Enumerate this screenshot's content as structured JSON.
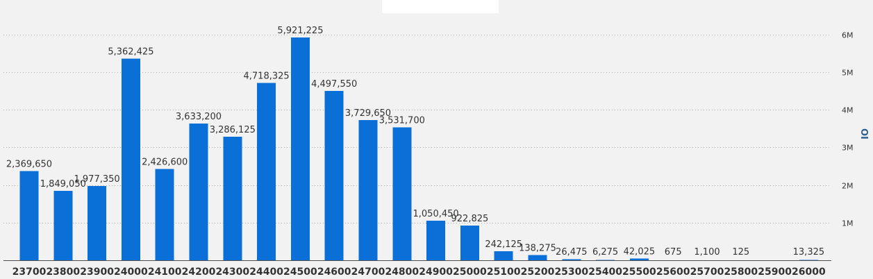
{
  "chart_data": {
    "type": "bar",
    "categories": [
      "23700",
      "23800",
      "23900",
      "24000",
      "24100",
      "24200",
      "24300",
      "24400",
      "24500",
      "24600",
      "24700",
      "24800",
      "24900",
      "25000",
      "25100",
      "25200",
      "25300",
      "25400",
      "25500",
      "25600",
      "25700",
      "25800",
      "25900",
      "26000"
    ],
    "values": [
      2369650,
      1849050,
      1977350,
      5362425,
      2426600,
      3633200,
      3286125,
      4718325,
      5921225,
      4497550,
      3729650,
      3531700,
      1050450,
      922825,
      242125,
      138275,
      26475,
      6275,
      42025,
      675,
      1100,
      125,
      0,
      13325
    ],
    "data_labels": [
      "2,369,650",
      "1,849,050",
      "1,977,350",
      "5,362,425",
      "2,426,600",
      "3,633,200",
      "3,286,125",
      "4,718,325",
      "5,921,225",
      "4,497,550",
      "3,729,650",
      "3,531,700",
      "1,050,450",
      "922,825",
      "242,125",
      "138,275",
      "26,475",
      "6,275",
      "42,025",
      "675",
      "1,100",
      "125",
      "",
      "13,325"
    ],
    "ylabel": "OI",
    "ylim": [
      0,
      6500000
    ],
    "y_ticks": [
      {
        "value": 1000000,
        "label": "1M"
      },
      {
        "value": 2000000,
        "label": "2M"
      },
      {
        "value": 3000000,
        "label": "3M"
      },
      {
        "value": 4000000,
        "label": "4M"
      },
      {
        "value": 5000000,
        "label": "5M"
      },
      {
        "value": 6000000,
        "label": "6M"
      }
    ],
    "y_axis_side": "right",
    "grid": true,
    "bar_color": "#0a6fd6"
  }
}
